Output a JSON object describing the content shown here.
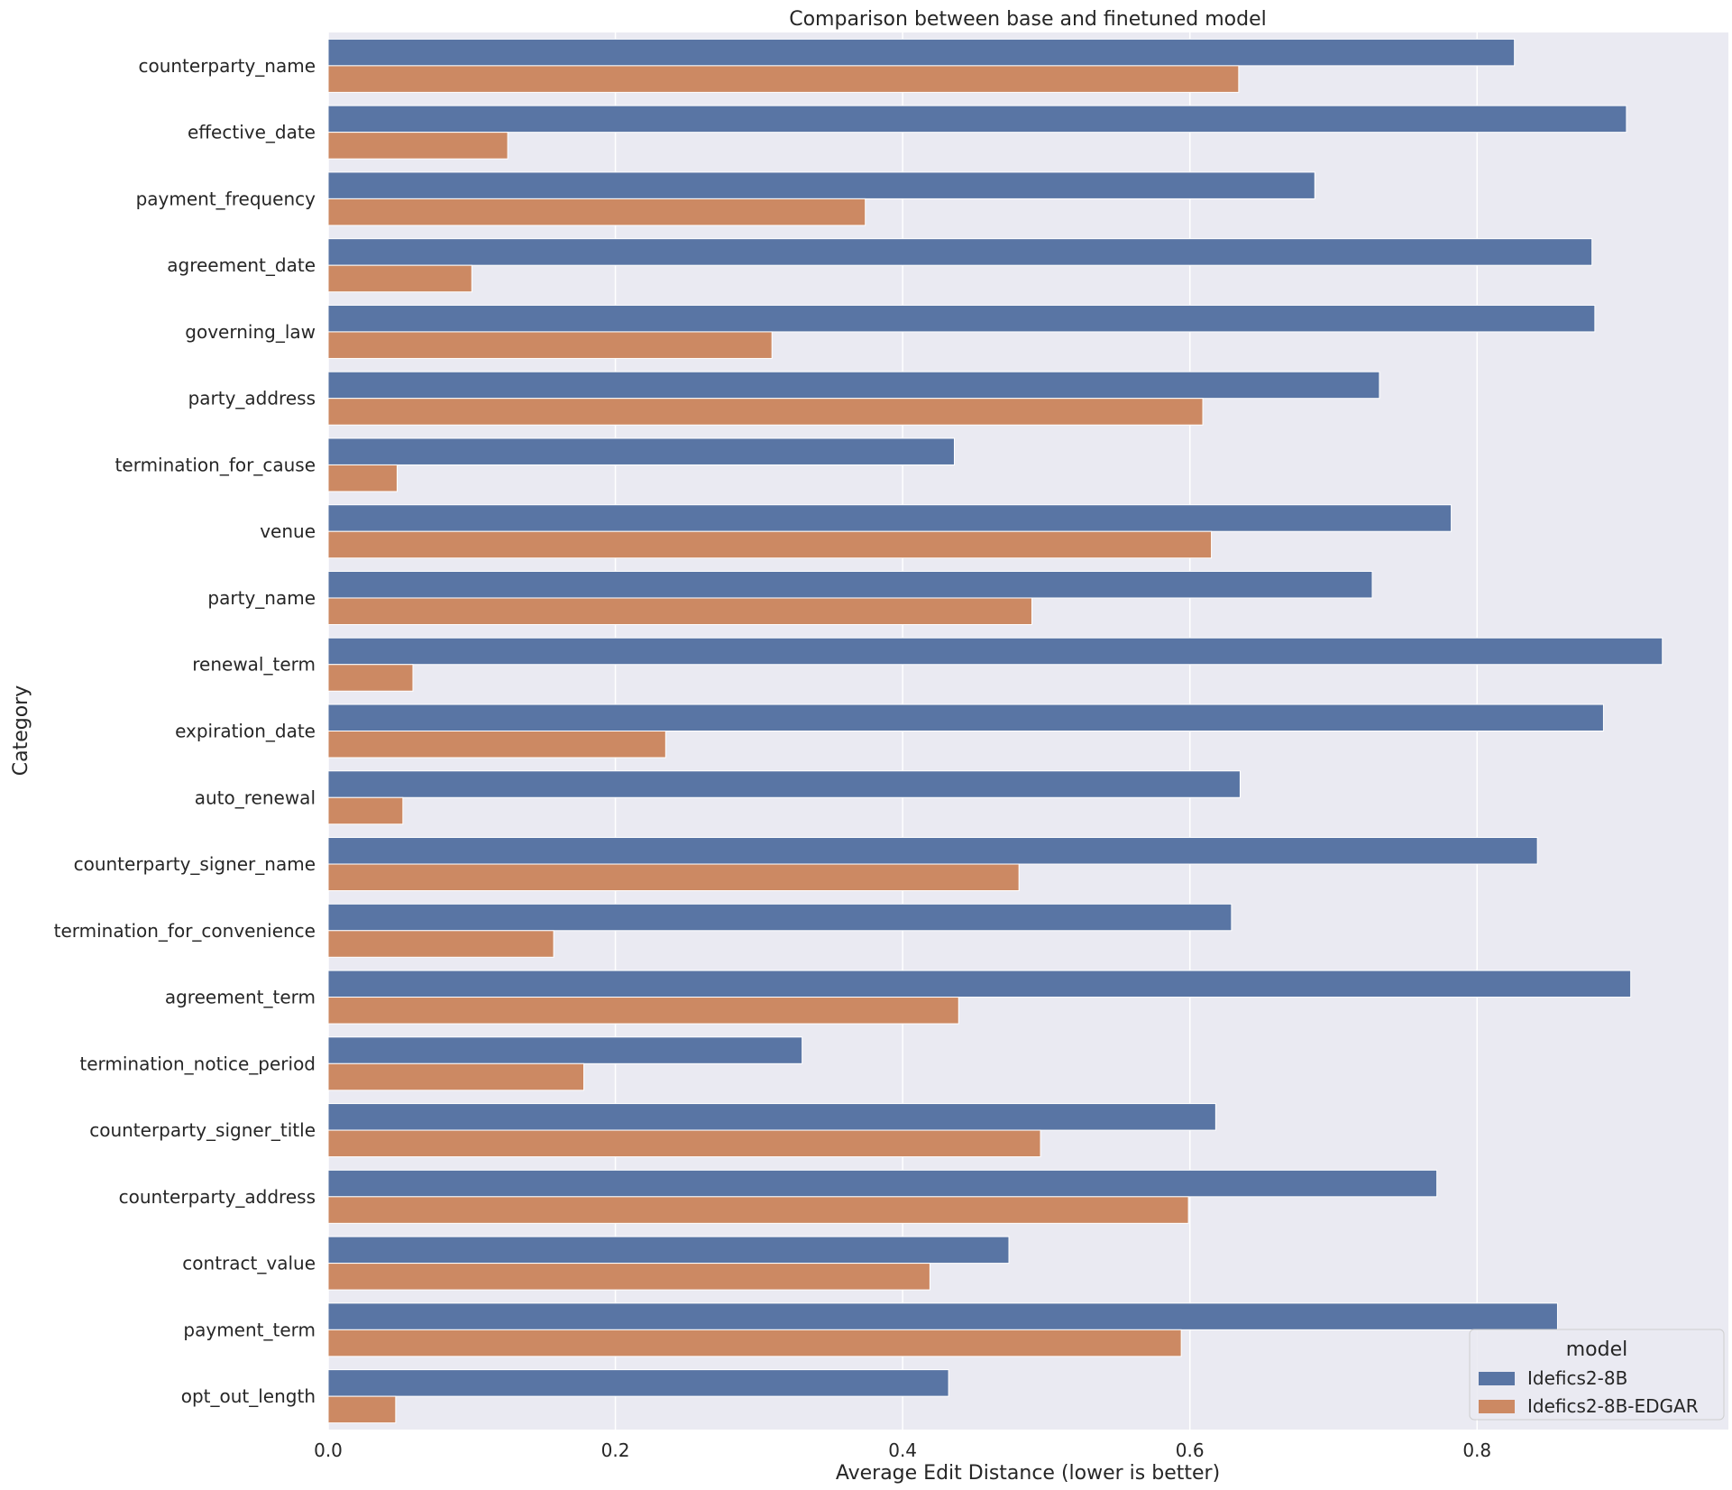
{
  "chart_data": {
    "type": "bar",
    "orientation": "horizontal",
    "title": "Comparison between base and finetuned model",
    "xlabel": "Average Edit Distance (lower is better)",
    "ylabel": "Category",
    "xlim": [
      0,
      0.975
    ],
    "xticks": [
      0.0,
      0.2,
      0.4,
      0.6,
      0.8
    ],
    "xtick_labels": [
      "0.0",
      "0.2",
      "0.4",
      "0.6",
      "0.8"
    ],
    "grid": true,
    "legend_title": "model",
    "legend_position": "bottom-right",
    "categories": [
      "counterparty_name",
      "effective_date",
      "payment_frequency",
      "agreement_date",
      "governing_law",
      "party_address",
      "termination_for_cause",
      "venue",
      "party_name",
      "renewal_term",
      "expiration_date",
      "auto_renewal",
      "counterparty_signer_name",
      "termination_for_convenience",
      "agreement_term",
      "termination_notice_period",
      "counterparty_signer_title",
      "counterparty_address",
      "contract_value",
      "payment_term",
      "opt_out_length"
    ],
    "series": [
      {
        "name": "Idefics2-8B",
        "color": "#5975a4",
        "values": [
          0.826,
          0.904,
          0.687,
          0.88,
          0.882,
          0.732,
          0.436,
          0.782,
          0.727,
          0.929,
          0.888,
          0.635,
          0.842,
          0.629,
          0.907,
          0.33,
          0.618,
          0.772,
          0.474,
          0.856,
          0.432
        ]
      },
      {
        "name": "Idefics2-8B-EDGAR",
        "color": "#cc8963",
        "values": [
          0.634,
          0.125,
          0.374,
          0.1,
          0.309,
          0.609,
          0.048,
          0.615,
          0.49,
          0.059,
          0.235,
          0.052,
          0.481,
          0.157,
          0.439,
          0.178,
          0.496,
          0.599,
          0.419,
          0.594,
          0.047
        ]
      }
    ]
  }
}
